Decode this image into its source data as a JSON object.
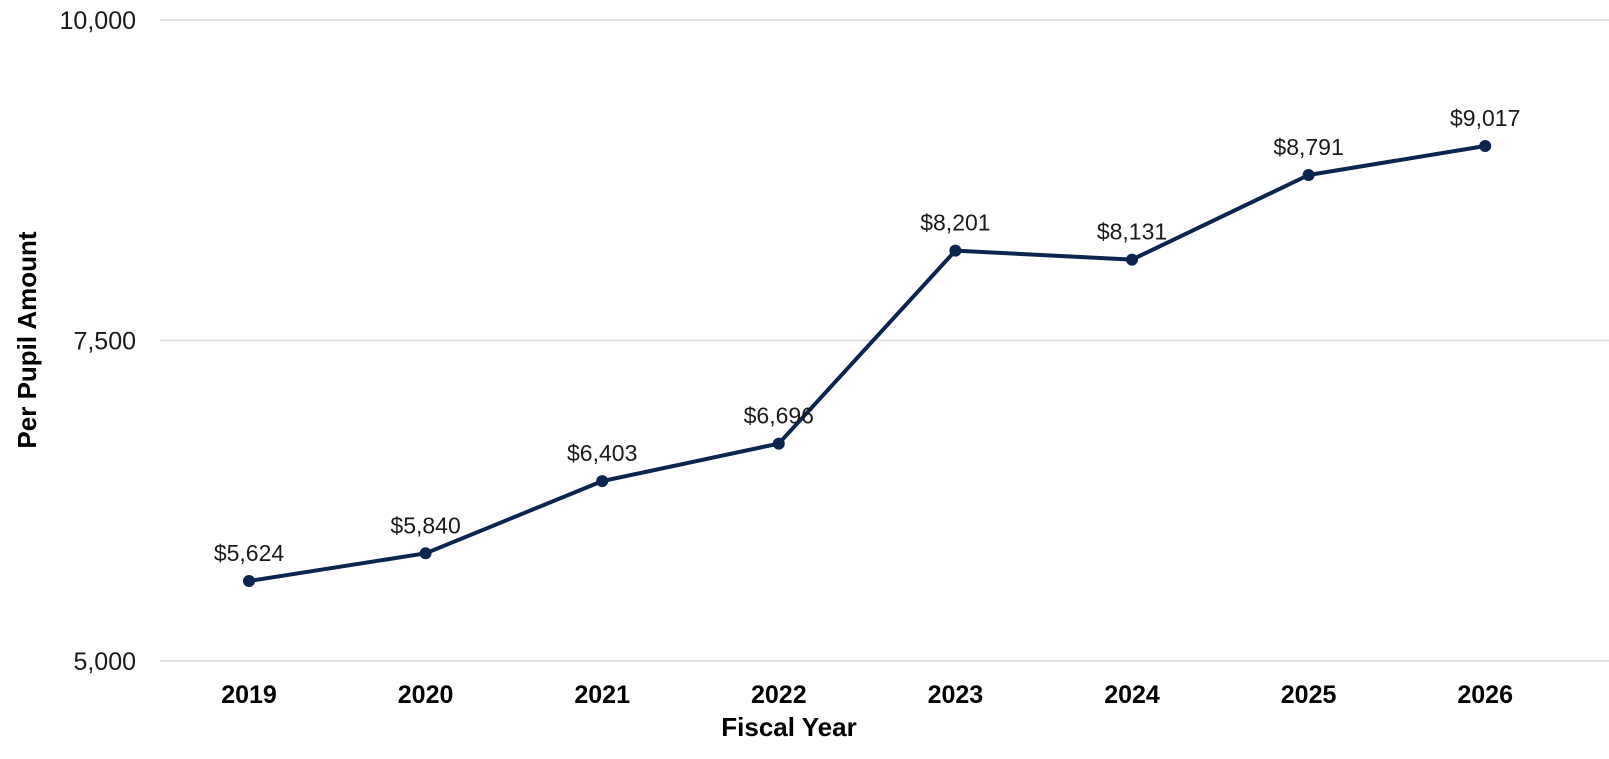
{
  "chart_data": {
    "type": "line",
    "title": "",
    "xlabel": "Fiscal Year",
    "ylabel": "Per Pupil Amount",
    "categories": [
      "2019",
      "2020",
      "2021",
      "2022",
      "2023",
      "2024",
      "2025",
      "2026"
    ],
    "series": [
      {
        "values": [
          5624,
          5840,
          6403,
          6696,
          8201,
          8131,
          8791,
          9017
        ],
        "labels": [
          "$5,624",
          "$5,840",
          "$6,403",
          "$6,696",
          "$8,201",
          "$8,131",
          "$8,791",
          "$9,017"
        ],
        "color": "#0b2550"
      }
    ],
    "ylim": [
      5000,
      10000
    ],
    "yticks": [
      5000,
      7500,
      10000
    ],
    "ytick_labels": [
      "5,000",
      "7,500",
      "10,000"
    ],
    "grid": true,
    "gridline_color": "#d9d9d9",
    "legend": "none"
  }
}
